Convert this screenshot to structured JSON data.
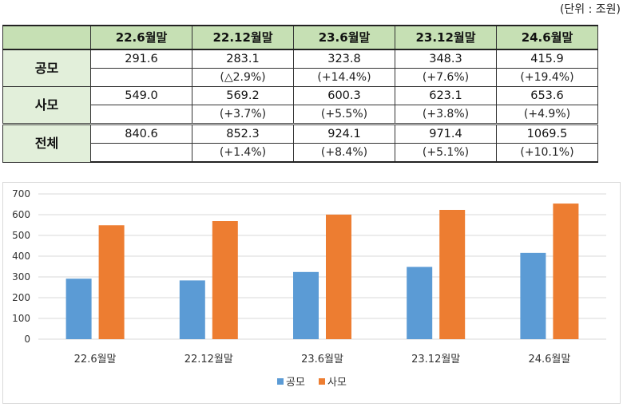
{
  "unit_note": "(단위 : 조원)",
  "table": {
    "corner": "",
    "columns": [
      "22.6월말",
      "22.12월말",
      "23.6월말",
      "23.12월말",
      "24.6월말"
    ],
    "rows": [
      {
        "label": "공모",
        "values": [
          "291.6",
          "283.1",
          "323.8",
          "348.3",
          "415.9"
        ],
        "changes": [
          "",
          "(△2.9%)",
          "(+14.4%)",
          "(+7.6%)",
          "(+19.4%)"
        ]
      },
      {
        "label": "사모",
        "values": [
          "549.0",
          "569.2",
          "600.3",
          "623.1",
          "653.6"
        ],
        "changes": [
          "",
          "(+3.7%)",
          "(+5.5%)",
          "(+3.8%)",
          "(+4.9%)"
        ]
      },
      {
        "label": "전체",
        "values": [
          "840.6",
          "852.3",
          "924.1",
          "971.4",
          "1069.5"
        ],
        "changes": [
          "",
          "(+1.4%)",
          "(+8.4%)",
          "(+5.1%)",
          "(+10.1%)"
        ]
      }
    ]
  },
  "chart_data": {
    "type": "bar",
    "title": "",
    "xlabel": "",
    "ylabel": "",
    "categories": [
      "22.6월말",
      "22.12월말",
      "23.6월말",
      "23.12월말",
      "24.6월말"
    ],
    "series": [
      {
        "name": "공모",
        "color": "#5b9bd5",
        "values": [
          291.6,
          283.1,
          323.8,
          348.3,
          415.9
        ]
      },
      {
        "name": "사모",
        "color": "#ed7d31",
        "values": [
          549.0,
          569.2,
          600.3,
          623.1,
          653.6
        ]
      }
    ],
    "ylim": [
      0,
      700
    ],
    "yticks": [
      0,
      100,
      200,
      300,
      400,
      500,
      600,
      700
    ],
    "grid": true,
    "legend": "bottom-center"
  }
}
